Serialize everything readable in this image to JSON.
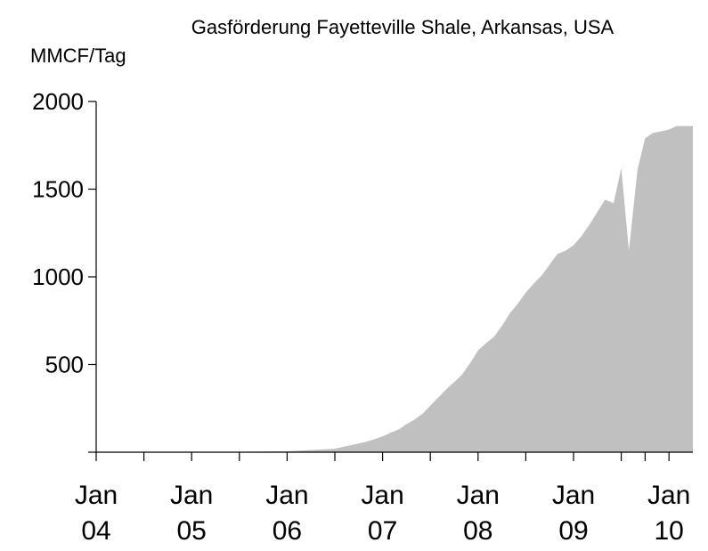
{
  "chart_data": {
    "type": "area",
    "title": "Gasförderung Fayetteville Shale, Arkansas, USA",
    "ylabel": "MMCF/Tag",
    "xlabel": "",
    "ylim": [
      0,
      2000
    ],
    "xlim": [
      2004.0,
      2010.25
    ],
    "grid": false,
    "legend": "none",
    "colors": {
      "area": "#c0c0c0",
      "axis": "#000000",
      "background": "#ffffff"
    },
    "y_ticks": [
      {
        "value": 500,
        "label": "500"
      },
      {
        "value": 1000,
        "label": "1000"
      },
      {
        "value": 1500,
        "label": "1500"
      },
      {
        "value": 2000,
        "label": "2000"
      }
    ],
    "x_minor_ticks": [
      2004.0,
      2004.5,
      2005.0,
      2005.5,
      2006.0,
      2006.5,
      2007.0,
      2007.5,
      2008.0,
      2008.5,
      2009.0,
      2009.5,
      2009.75,
      2010.0
    ],
    "x_labels": [
      {
        "value": 2004.0,
        "line1": "Jan",
        "line2": "04"
      },
      {
        "value": 2005.0,
        "line1": "Jan",
        "line2": "05"
      },
      {
        "value": 2006.0,
        "line1": "Jan",
        "line2": "06"
      },
      {
        "value": 2007.0,
        "line1": "Jan",
        "line2": "07"
      },
      {
        "value": 2008.0,
        "line1": "Jan",
        "line2": "08"
      },
      {
        "value": 2009.0,
        "line1": "Jan",
        "line2": "09"
      },
      {
        "value": 2010.0,
        "line1": "Jan",
        "line2": "10"
      }
    ],
    "series": [
      {
        "x": [
          2004.0,
          2004.5,
          2005.0,
          2005.5,
          2006.0,
          2006.5,
          2006.83,
          2006.92,
          2007.0,
          2007.08,
          2007.17,
          2007.25,
          2007.33,
          2007.42,
          2007.5,
          2007.58,
          2007.67,
          2007.75,
          2007.83,
          2007.92,
          2008.0,
          2008.08,
          2008.17,
          2008.25,
          2008.33,
          2008.42,
          2008.5,
          2008.58,
          2008.67,
          2008.75,
          2008.83,
          2008.92,
          2009.0,
          2009.08,
          2009.17,
          2009.25,
          2009.33,
          2009.42,
          2009.5,
          2009.58,
          2009.67,
          2009.75,
          2009.83,
          2009.92,
          2010.0,
          2010.08,
          2010.17,
          2010.25
        ],
        "values": [
          0,
          0,
          0,
          2,
          5,
          20,
          60,
          75,
          90,
          110,
          130,
          160,
          185,
          220,
          265,
          310,
          360,
          400,
          440,
          510,
          580,
          620,
          660,
          720,
          790,
          850,
          910,
          960,
          1010,
          1070,
          1130,
          1150,
          1180,
          1230,
          1300,
          1370,
          1440,
          1420,
          1620,
          1150,
          1610,
          1790,
          1820,
          1830,
          1840,
          1860,
          1860,
          1860
        ]
      }
    ]
  }
}
